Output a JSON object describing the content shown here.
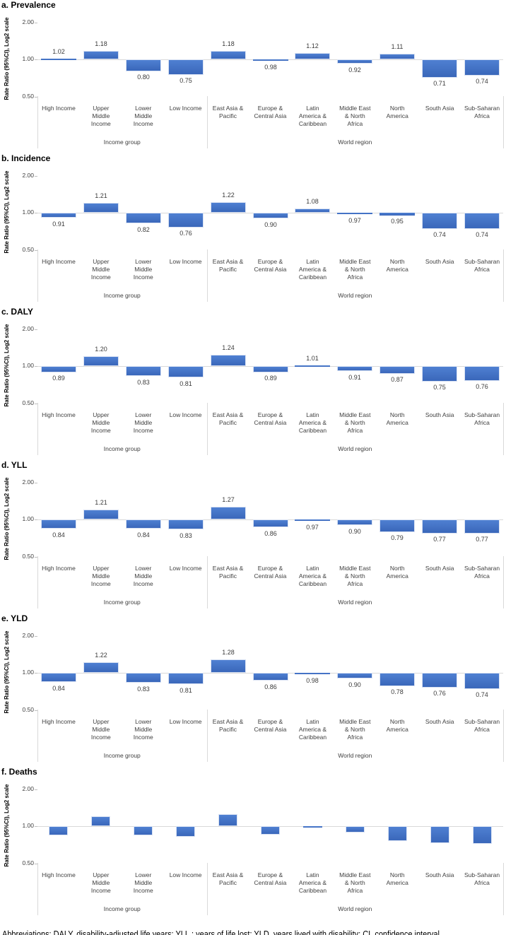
{
  "figure": {
    "y_axis_label": "Rate Ratio (95%CI), Log2 scale",
    "y_ticks": [
      "2.00",
      "1.00",
      "0.50"
    ],
    "group_labels": [
      {
        "label": "Income group",
        "span_start": 0,
        "span_end": 3
      },
      {
        "label": "World region",
        "span_start": 4,
        "span_end": 10
      }
    ],
    "categories_display": [
      "High Income",
      "Upper\nMiddle\nIncome",
      "Lower\nMiddle\nIncome",
      "Low Income",
      "East Asia &\nPacific",
      "Europe &\nCentral Asia",
      "Latin\nAmerica &\nCaribbean",
      "Middle East\n& North\nAfrica",
      "North\nAmerica",
      "South Asia",
      "Sub-Saharan\nAfrica"
    ],
    "colors": {
      "bar_gradient_top": "#4f80d2",
      "bar_gradient_bottom": "#3a67ba",
      "bar_border": "#d9e2f3",
      "axis_line": "#d9d9d9",
      "label_text": "#404040"
    }
  },
  "chart_data": [
    {
      "type": "bar",
      "title": "a. Prevalence",
      "ylabel": "Rate Ratio (95%CI), Log2 scale",
      "yscale": "log2",
      "yticks": [
        0.5,
        1.0,
        2.0
      ],
      "ylim": [
        0.5,
        2.0
      ],
      "baseline": 1.0,
      "categories": [
        "High Income",
        "Upper Middle Income",
        "Lower Middle Income",
        "Low Income",
        "East Asia & Pacific",
        "Europe & Central Asia",
        "Latin America & Caribbean",
        "Middle East & North Africa",
        "North America",
        "South Asia",
        "Sub-Saharan Africa"
      ],
      "category_groups": [
        "Income group",
        "Income group",
        "Income group",
        "Income group",
        "World region",
        "World region",
        "World region",
        "World region",
        "World region",
        "World region",
        "World region"
      ],
      "values": [
        1.02,
        1.18,
        0.8,
        0.75,
        1.18,
        0.98,
        1.12,
        0.92,
        1.11,
        0.71,
        0.74
      ],
      "value_labels": [
        "1.02",
        "1.18",
        "0.80",
        "0.75",
        "1.18",
        "0.98",
        "1.12",
        "0.92",
        "1.11",
        "0.71",
        "0.74"
      ],
      "show_value_labels": true
    },
    {
      "type": "bar",
      "title": "b. Incidence",
      "ylabel": "Rate Ratio (95%CI), Log2 scale",
      "yscale": "log2",
      "yticks": [
        0.5,
        1.0,
        2.0
      ],
      "ylim": [
        0.5,
        2.0
      ],
      "baseline": 1.0,
      "categories": [
        "High Income",
        "Upper Middle Income",
        "Lower Middle Income",
        "Low Income",
        "East Asia & Pacific",
        "Europe & Central Asia",
        "Latin America & Caribbean",
        "Middle East & North Africa",
        "North America",
        "South Asia",
        "Sub-Saharan Africa"
      ],
      "category_groups": [
        "Income group",
        "Income group",
        "Income group",
        "Income group",
        "World region",
        "World region",
        "World region",
        "World region",
        "World region",
        "World region",
        "World region"
      ],
      "values": [
        0.91,
        1.21,
        0.82,
        0.76,
        1.22,
        0.9,
        1.08,
        0.97,
        0.95,
        0.74,
        0.74
      ],
      "value_labels": [
        "0.91",
        "1.21",
        "0.82",
        "0.76",
        "1.22",
        "0.90",
        "1.08",
        "0.97",
        "0.95",
        "0.74",
        "0.74"
      ],
      "show_value_labels": true
    },
    {
      "type": "bar",
      "title": "c. DALY",
      "ylabel": "Rate Ratio (95%CI), Log2 scale",
      "yscale": "log2",
      "yticks": [
        0.5,
        1.0,
        2.0
      ],
      "ylim": [
        0.5,
        2.0
      ],
      "baseline": 1.0,
      "categories": [
        "High Income",
        "Upper Middle Income",
        "Lower Middle Income",
        "Low Income",
        "East Asia & Pacific",
        "Europe & Central Asia",
        "Latin America & Caribbean",
        "Middle East & North Africa",
        "North America",
        "South Asia",
        "Sub-Saharan Africa"
      ],
      "category_groups": [
        "Income group",
        "Income group",
        "Income group",
        "Income group",
        "World region",
        "World region",
        "World region",
        "World region",
        "World region",
        "World region",
        "World region"
      ],
      "values": [
        0.89,
        1.2,
        0.83,
        0.81,
        1.24,
        0.89,
        1.01,
        0.91,
        0.87,
        0.75,
        0.76
      ],
      "value_labels": [
        "0.89",
        "1.20",
        "0.83",
        "0.81",
        "1.24",
        "0.89",
        "1.01",
        "0.91",
        "0.87",
        "0.75",
        "0.76"
      ],
      "show_value_labels": true
    },
    {
      "type": "bar",
      "title": "d. YLL",
      "ylabel": "Rate Ratio (95%CI), Log2 scale",
      "yscale": "log2",
      "yticks": [
        0.5,
        1.0,
        2.0
      ],
      "ylim": [
        0.5,
        2.0
      ],
      "baseline": 1.0,
      "categories": [
        "High Income",
        "Upper Middle Income",
        "Lower Middle Income",
        "Low Income",
        "East Asia & Pacific",
        "Europe & Central Asia",
        "Latin America & Caribbean",
        "Middle East & North Africa",
        "North America",
        "South Asia",
        "Sub-Saharan Africa"
      ],
      "category_groups": [
        "Income group",
        "Income group",
        "Income group",
        "Income group",
        "World region",
        "World region",
        "World region",
        "World region",
        "World region",
        "World region",
        "World region"
      ],
      "values": [
        0.84,
        1.21,
        0.84,
        0.83,
        1.27,
        0.86,
        0.97,
        0.9,
        0.79,
        0.77,
        0.77
      ],
      "value_labels": [
        "0.84",
        "1.21",
        "0.84",
        "0.83",
        "1.27",
        "0.86",
        "0.97",
        "0.90",
        "0.79",
        "0.77",
        "0.77"
      ],
      "show_value_labels": true
    },
    {
      "type": "bar",
      "title": "e. YLD",
      "ylabel": "Rate Ratio (95%CI), Log2 scale",
      "yscale": "log2",
      "yticks": [
        0.5,
        1.0,
        2.0
      ],
      "ylim": [
        0.5,
        2.0
      ],
      "baseline": 1.0,
      "categories": [
        "High Income",
        "Upper Middle Income",
        "Lower Middle Income",
        "Low Income",
        "East Asia & Pacific",
        "Europe & Central Asia",
        "Latin America & Caribbean",
        "Middle East & North Africa",
        "North America",
        "South Asia",
        "Sub-Saharan Africa"
      ],
      "category_groups": [
        "Income group",
        "Income group",
        "Income group",
        "Income group",
        "World region",
        "World region",
        "World region",
        "World region",
        "World region",
        "World region",
        "World region"
      ],
      "values": [
        0.84,
        1.22,
        0.83,
        0.81,
        1.28,
        0.86,
        0.98,
        0.9,
        0.78,
        0.76,
        0.74
      ],
      "value_labels": [
        "0.84",
        "1.22",
        "0.83",
        "0.81",
        "1.28",
        "0.86",
        "0.98",
        "0.90",
        "0.78",
        "0.76",
        "0.74"
      ],
      "show_value_labels": true
    },
    {
      "type": "bar",
      "title": "f. Deaths",
      "ylabel": "Rate Ratio (95%CI), Log2 scale",
      "yscale": "log2",
      "yticks": [
        0.5,
        1.0,
        2.0
      ],
      "ylim": [
        0.5,
        2.0
      ],
      "baseline": 1.0,
      "categories": [
        "High Income",
        "Upper Middle Income",
        "Lower Middle Income",
        "Low Income",
        "East Asia & Pacific",
        "Europe & Central Asia",
        "Latin America & Caribbean",
        "Middle East & North Africa",
        "North America",
        "South Asia",
        "Sub-Saharan Africa"
      ],
      "category_groups": [
        "Income group",
        "Income group",
        "Income group",
        "Income group",
        "World region",
        "World region",
        "World region",
        "World region",
        "World region",
        "World region",
        "World region"
      ],
      "values": [
        0.84,
        1.2,
        0.84,
        0.82,
        1.25,
        0.85,
        0.97,
        0.89,
        0.76,
        0.73,
        0.72
      ],
      "value_labels": [],
      "show_value_labels": false
    }
  ],
  "footer": {
    "text": "Abbreviations: DALY, disability-adjusted life years; YLL,: years of life lost; YLD, years lived with disability; CI, confidence interval."
  }
}
